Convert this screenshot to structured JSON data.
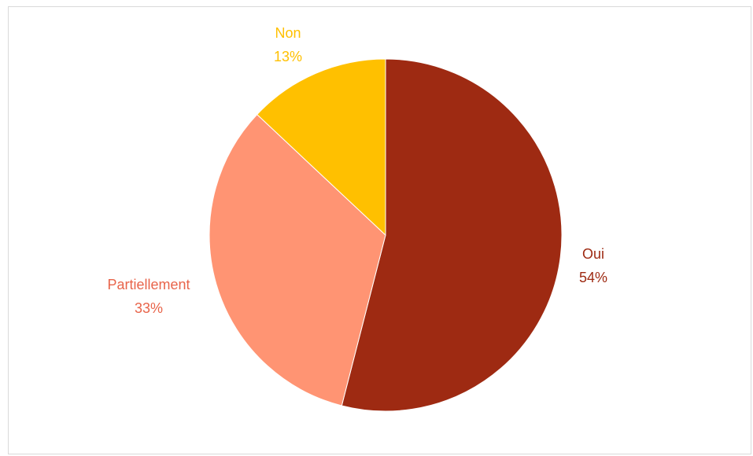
{
  "chart_data": {
    "type": "pie",
    "title": "",
    "start": "top",
    "direction": "clockwise",
    "legend": "none",
    "slices": [
      {
        "label": "Oui",
        "value": 54,
        "display": "54%",
        "color": "#9e2a12",
        "label_color": "#9e2a12"
      },
      {
        "label": "Partiellement",
        "value": 33,
        "display": "33%",
        "color": "#ff9473",
        "label_color": "#e8644a"
      },
      {
        "label": "Non",
        "value": 13,
        "display": "13%",
        "color": "#ffc000",
        "label_color": "#ffc000"
      }
    ]
  }
}
